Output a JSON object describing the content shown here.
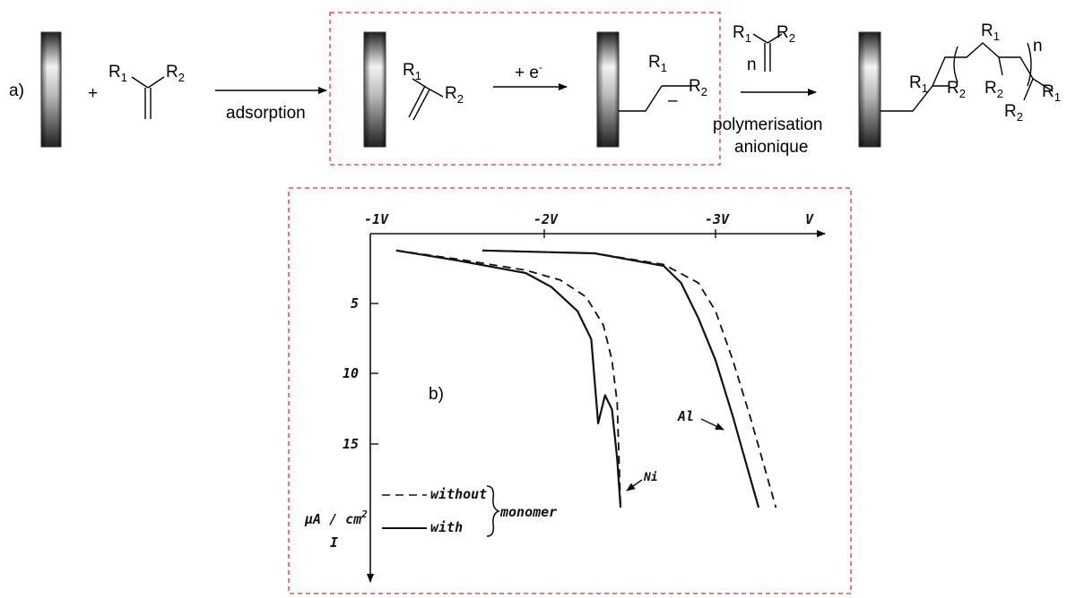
{
  "scheme": {
    "panel_label_a": "a)",
    "plus": "+",
    "arrow1_label": "adsorption",
    "arrow2_label": "+ e",
    "arrow2_sup": "-",
    "arrow3_label_line1": "polymerisation",
    "arrow3_label_line2": "anionique",
    "anion_charge": "–",
    "n": "n",
    "R": "R",
    "sub1": "1",
    "sub2": "2"
  },
  "plot": {
    "panel_label_b": "b)",
    "x_ticks": [
      "-1V",
      "-2V",
      "-3V",
      "V"
    ],
    "y_ticks": [
      "5",
      "10",
      "15"
    ],
    "y_unit_line1": "μA / cm",
    "y_unit_sup": "2",
    "y_unit_line2": "I",
    "curve_label_ni": "Ni",
    "curve_label_al": "Al",
    "legend_without": "without",
    "legend_with": "with",
    "legend_group": "monomer"
  },
  "chart_data": {
    "type": "line",
    "x_axis": "potential (V)",
    "y_axis": "μA / cm²",
    "xlim": [
      -1,
      -3.6
    ],
    "ylim": [
      0,
      20
    ],
    "series": [
      {
        "name": "Ni without monomer",
        "style": "dashed",
        "x": [
          -1.15,
          -1.5,
          -1.9,
          -2.1,
          -2.25,
          -2.35,
          -2.4,
          -2.43,
          -2.45
        ],
        "y": [
          1.2,
          1.8,
          2.6,
          3.3,
          4.5,
          6.5,
          9,
          12,
          19.5
        ]
      },
      {
        "name": "Ni with monomer",
        "style": "solid",
        "x": [
          -1.15,
          -1.5,
          -1.9,
          -2.05,
          -2.2,
          -2.28,
          -2.32,
          -2.36,
          -2.4,
          -2.43,
          -2.45
        ],
        "y": [
          1.2,
          1.9,
          2.8,
          3.8,
          5.5,
          7.5,
          13.5,
          11.5,
          12.5,
          16,
          19.5
        ]
      },
      {
        "name": "Al without monomer",
        "style": "dashed",
        "x": [
          -1.65,
          -2.3,
          -2.7,
          -2.9,
          -3.0,
          -3.1,
          -3.2,
          -3.35
        ],
        "y": [
          1.2,
          1.4,
          2.2,
          3.5,
          5.5,
          9,
          13,
          19.5
        ]
      },
      {
        "name": "Al with monomer",
        "style": "solid",
        "x": [
          -1.65,
          -2.3,
          -2.7,
          -2.8,
          -2.9,
          -3.0,
          -3.1,
          -3.25
        ],
        "y": [
          1.2,
          1.4,
          2.3,
          3.5,
          6,
          9,
          13,
          19.5
        ]
      }
    ]
  }
}
